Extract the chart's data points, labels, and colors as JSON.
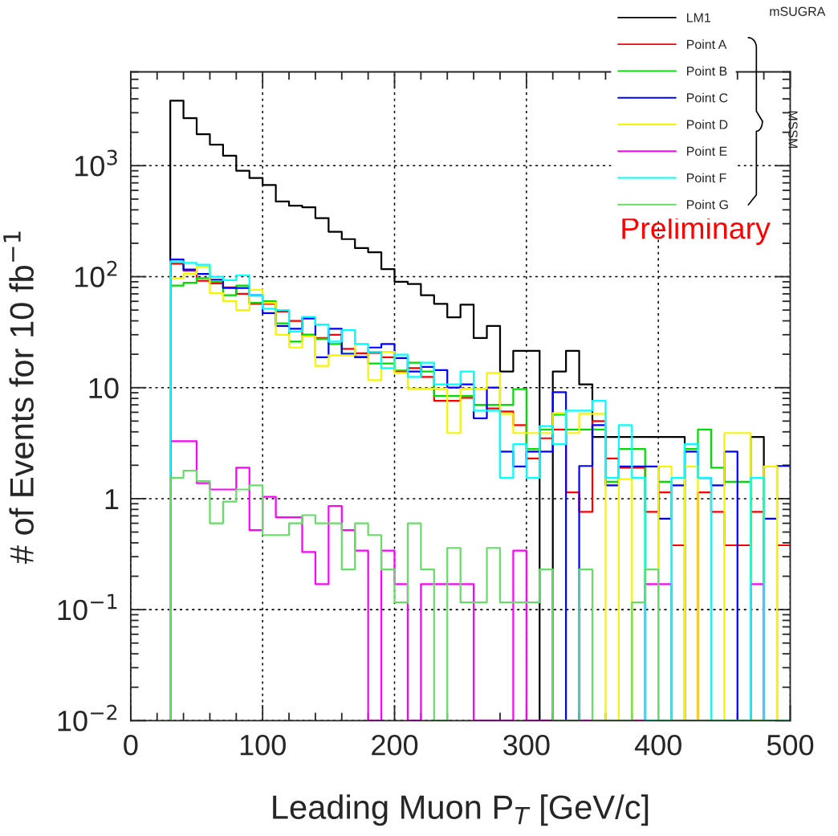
{
  "chart_data": {
    "type": "histogram",
    "xlabel": "Leading Muon P$_{T}$ [GeV/c]",
    "ylabel": "# of Events for 10 fb$^{−1}$",
    "annotations": [
      "Preliminary",
      "mSUGRA",
      "MSSM"
    ],
    "bins": [
      30,
      40,
      50,
      60,
      70,
      80,
      90,
      100,
      110,
      120,
      130,
      140,
      150,
      160,
      170,
      180,
      190,
      200,
      210,
      220,
      230,
      240,
      250,
      260,
      270,
      280,
      290,
      300,
      310,
      320,
      330,
      340,
      350,
      360,
      370,
      380,
      390,
      400,
      410,
      420,
      430,
      440,
      450,
      460,
      470,
      480,
      490,
      500
    ],
    "series": [
      {
        "name": "LM1",
        "color": "#000000",
        "values": [
          3855,
          2680,
          1920,
          1550,
          1230,
          900,
          774,
          670,
          476,
          436,
          422,
          337,
          254,
          218,
          181,
          166,
          117,
          90,
          86,
          68,
          57,
          43,
          56,
          28,
          36,
          14,
          21.5,
          21.5,
          null,
          14,
          21.5,
          10.7,
          3.6,
          3.6,
          3.6,
          3.6,
          3.6,
          3.6,
          3.6,
          null,
          null,
          null,
          null,
          null,
          3.6,
          null,
          null
        ]
      },
      {
        "name": "Point A",
        "color": "#ff0000",
        "values": [
          131,
          113,
          92,
          87,
          80,
          70,
          57,
          57,
          48.5,
          40,
          30,
          28,
          30,
          22.4,
          20.4,
          20.6,
          18.8,
          14,
          15,
          12.5,
          7.6,
          7.6,
          8.1,
          7.0,
          6.5,
          6.1,
          4.6,
          2.3,
          3.5,
          4.2,
          1.14,
          0.76,
          5.0,
          2.3,
          1.9,
          1.9,
          0.76,
          1.14,
          0.38,
          null,
          1.14,
          0.76,
          0.38,
          0.38,
          0.76,
          null,
          0.38
        ]
      },
      {
        "name": "Point B",
        "color": "#00dd00",
        "values": [
          83,
          88,
          97,
          90,
          68,
          83,
          58,
          60,
          38,
          26,
          30,
          27.6,
          24.7,
          20.4,
          19,
          16.5,
          16.5,
          14.3,
          16.8,
          14,
          8.4,
          8.4,
          8.4,
          7.0,
          7.0,
          7.0,
          9.7,
          2.8,
          4.2,
          5.7,
          4.2,
          4.2,
          4.2,
          1.42,
          2.8,
          2.8,
          null,
          1.42,
          null,
          2.8,
          4.2,
          1.9,
          1.42,
          1.42,
          null,
          null,
          null
        ]
      },
      {
        "name": "Point C",
        "color": "#0000ff",
        "values": [
          143,
          116,
          106,
          94,
          79,
          79,
          68,
          47,
          36,
          34,
          42,
          18.8,
          34,
          20,
          18.8,
          23,
          24.7,
          18.5,
          14.0,
          15.4,
          14.4,
          10,
          10.7,
          5.3,
          10,
          2.65,
          1.95,
          2.65,
          2.65,
          9.1,
          null,
          1.97,
          4.6,
          1.32,
          1.95,
          1.95,
          1.95,
          0.66,
          1.32,
          2.65,
          1.54,
          1.32,
          2.65,
          null,
          null,
          0.66,
          1.97
        ]
      },
      {
        "name": "Point D",
        "color": "#f5f500",
        "values": [
          97,
          106,
          123,
          71,
          60,
          50,
          76,
          58,
          30,
          23,
          29,
          15.7,
          19.6,
          19.6,
          24.7,
          11.7,
          21,
          13.6,
          9.8,
          9.8,
          9.8,
          3.9,
          9.8,
          9.8,
          13.6,
          5.8,
          3.9,
          3.9,
          3.9,
          5.9,
          3.9,
          5.8,
          5.8,
          null,
          1.5,
          null,
          null,
          1.95,
          null,
          1.95,
          null,
          null,
          3.9,
          3.9,
          null,
          1.95,
          null
        ]
      },
      {
        "name": "Point E",
        "color": "#ff00ff",
        "values": [
          3.3,
          3.3,
          1.38,
          1.21,
          1.21,
          1.9,
          0.52,
          1.04,
          0.68,
          0.68,
          0.33,
          0.17,
          0.86,
          0.52,
          0.34,
          null,
          0.34,
          0.17,
          null,
          0.17,
          0.17,
          0.17,
          0.17,
          null,
          null,
          null,
          0.34,
          null,
          null,
          null,
          null,
          null,
          null,
          null,
          null,
          null,
          0.17,
          0.17,
          null,
          null,
          null,
          null,
          null,
          null,
          0.17,
          null,
          null
        ]
      },
      {
        "name": "Point F",
        "color": "#00ffff",
        "values": [
          137,
          133,
          128,
          100,
          93,
          103,
          68,
          51.5,
          50,
          32,
          43.5,
          37,
          26,
          33,
          24.7,
          21,
          15,
          19.8,
          12.5,
          16.8,
          10.7,
          10.7,
          14,
          6.2,
          6.2,
          1.54,
          3.1,
          1.54,
          4.5,
          3.1,
          6.2,
          6.2,
          7.6,
          1.54,
          4.6,
          1.54,
          null,
          null,
          1.54,
          3.1,
          1.54,
          null,
          null,
          null,
          1.54,
          null,
          null
        ]
      },
      {
        "name": "Point G",
        "color": "#66dd66",
        "values": [
          1.54,
          1.79,
          1.44,
          0.6,
          0.94,
          1.21,
          1.32,
          0.47,
          0.47,
          0.6,
          0.71,
          0.6,
          0.6,
          0.23,
          0.6,
          0.47,
          0.23,
          0.116,
          0.6,
          0.23,
          null,
          0.36,
          0.116,
          0.116,
          0.36,
          0.116,
          0.116,
          0.116,
          0.23,
          null,
          null,
          0.23,
          null,
          null,
          null,
          0.116,
          0.23,
          null,
          null,
          null,
          null,
          null,
          null,
          null,
          null,
          null,
          null
        ]
      }
    ],
    "xlim": [
      0,
      500
    ],
    "xticks": [
      0,
      100,
      200,
      300,
      400,
      500
    ],
    "ylim": [
      0.01,
      7000
    ],
    "yticks": [
      {
        "value": 0.01,
        "label": "10$^{−2}$"
      },
      {
        "value": 0.1,
        "label": "10$^{−1}$"
      },
      {
        "value": 1,
        "label": "1"
      },
      {
        "value": 10,
        "label": "10"
      },
      {
        "value": 100,
        "label": "10$^{2}$"
      },
      {
        "value": 1000,
        "label": "10$^{3}$"
      }
    ],
    "log": "y",
    "grid": true,
    "legend": "top right",
    "line_style": "solid"
  }
}
